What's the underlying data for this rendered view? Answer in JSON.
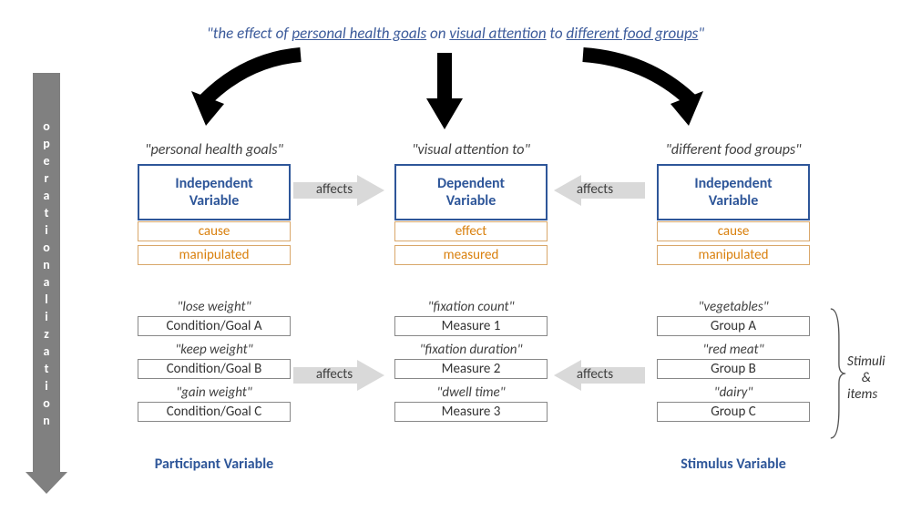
{
  "title": {
    "prefix": "\"the ",
    "w_effect": "effect",
    "mid1": " of ",
    "w_goals": "personal health goals",
    "mid2": " on ",
    "w_attn": "visual attention",
    "mid3": " to ",
    "w_groups": "different food groups",
    "suffix": "\""
  },
  "sidebar_word": "operationalization",
  "columns": {
    "c1": {
      "quote": "\"personal health goals\"",
      "main_l1": "Independent",
      "main_l2": "Variable",
      "sub1": "cause",
      "sub2": "manipulated",
      "items": [
        {
          "q": "\"lose weight\"",
          "b": "Condition/Goal A"
        },
        {
          "q": "\"keep weight\"",
          "b": "Condition/Goal B"
        },
        {
          "q": "\"gain weight\"",
          "b": "Condition/Goal C"
        }
      ],
      "bottom": "Participant Variable"
    },
    "c2": {
      "quote": "\"visual attention to\"",
      "main_l1": "Dependent",
      "main_l2": "Variable",
      "sub1": "effect",
      "sub2": "measured",
      "items": [
        {
          "q": "\"fixation count\"",
          "b": "Measure 1"
        },
        {
          "q": "\"fixation duration\"",
          "b": "Measure 2"
        },
        {
          "q": "\"dwell time\"",
          "b": "Measure 3"
        }
      ]
    },
    "c3": {
      "quote": "\"different food groups\"",
      "main_l1": "Independent",
      "main_l2": "Variable",
      "sub1": "cause",
      "sub2": "manipulated",
      "items": [
        {
          "q": "\"vegetables\"",
          "b": "Group A"
        },
        {
          "q": "\"red meat\"",
          "b": "Group B"
        },
        {
          "q": "\"dairy\"",
          "b": "Group C"
        }
      ],
      "bottom": "Stimulus Variable"
    }
  },
  "affects_label": "affects",
  "stimuli_l1": "Stimuli",
  "stimuli_l2": "&",
  "stimuli_l3": "items",
  "colors": {
    "blue": "#2e5699",
    "orange_text": "#d9800e",
    "orange_border": "#d9a76a",
    "gray": "#808080",
    "arrow_gray": "#d9d9d9",
    "black": "#000000"
  }
}
